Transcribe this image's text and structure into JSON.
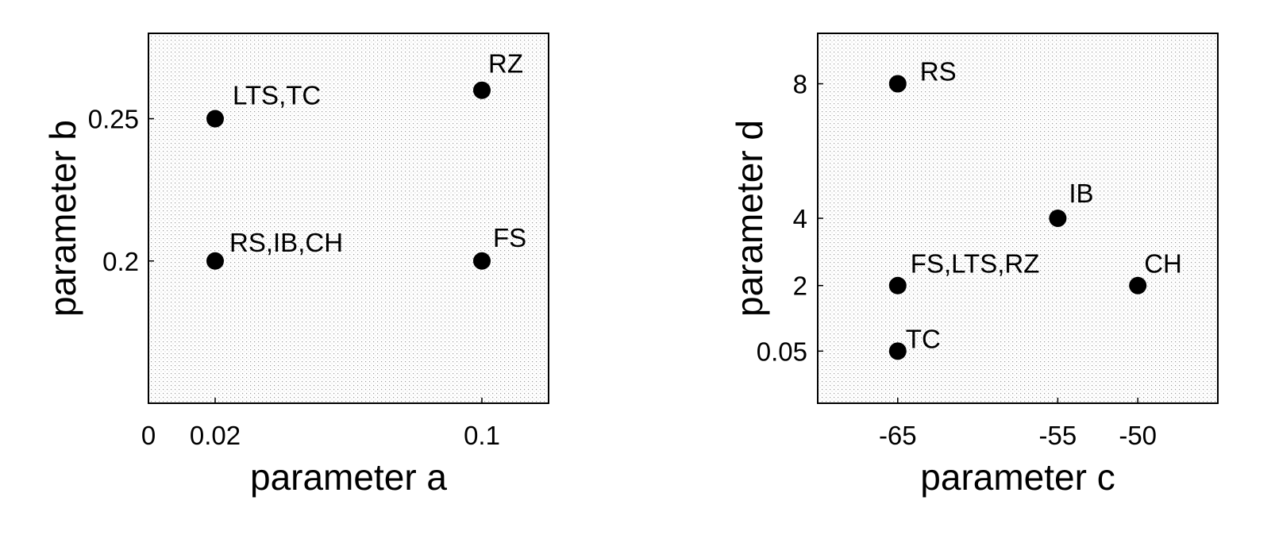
{
  "chart_data": [
    {
      "type": "scatter",
      "xlabel": "parameter a",
      "ylabel": "parameter b",
      "xlim": [
        0,
        0.12
      ],
      "ylim": [
        0.15,
        0.28
      ],
      "xticks": [
        {
          "value": 0,
          "label": "0"
        },
        {
          "value": 0.02,
          "label": "0.02"
        },
        {
          "value": 0.1,
          "label": "0.1"
        }
      ],
      "yticks": [
        {
          "value": 0.2,
          "label": "0.2"
        },
        {
          "value": 0.25,
          "label": "0.25"
        }
      ],
      "points": [
        {
          "x": 0.02,
          "y": 0.25,
          "label": "LTS,TC"
        },
        {
          "x": 0.1,
          "y": 0.26,
          "label": "RZ"
        },
        {
          "x": 0.02,
          "y": 0.2,
          "label": "RS,IB,CH"
        },
        {
          "x": 0.1,
          "y": 0.2,
          "label": "FS"
        }
      ],
      "marker_color": "#000000",
      "background": "dotted"
    },
    {
      "type": "scatter",
      "xlabel": "parameter c",
      "ylabel": "parameter d",
      "xlim": [
        -70,
        -45
      ],
      "ylim": [
        -1.5,
        9.5
      ],
      "xticks": [
        {
          "value": -65,
          "label": "-65"
        },
        {
          "value": -55,
          "label": "-55"
        },
        {
          "value": -50,
          "label": "-50"
        }
      ],
      "yticks": [
        {
          "value": 0.05,
          "label": "0.05"
        },
        {
          "value": 2,
          "label": "2"
        },
        {
          "value": 4,
          "label": "4"
        },
        {
          "value": 8,
          "label": "8"
        }
      ],
      "points": [
        {
          "x": -65,
          "y": 8,
          "label": "RS"
        },
        {
          "x": -55,
          "y": 4,
          "label": "IB"
        },
        {
          "x": -65,
          "y": 2,
          "label": "FS,LTS,RZ"
        },
        {
          "x": -50,
          "y": 2,
          "label": "CH"
        },
        {
          "x": -65,
          "y": 0.05,
          "label": "TC"
        }
      ],
      "marker_color": "#000000",
      "background": "dotted"
    }
  ]
}
